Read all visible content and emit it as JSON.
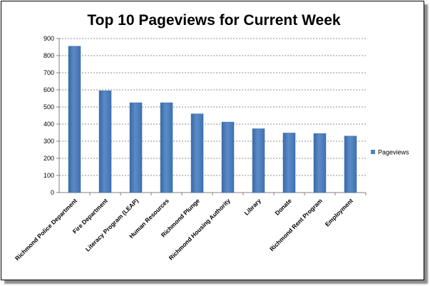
{
  "chart_data": {
    "type": "bar",
    "title": "Top 10 Pageviews for Current Week",
    "xlabel": "",
    "ylabel": "",
    "categories": [
      "Richmond Police Department",
      "Fire Department",
      "Literacy Program (LEAP)",
      "Human Resources",
      "Richmond Plunge",
      "Richmond Housing Authority",
      "Library",
      "Donate",
      "Richmond Rent Program",
      "Employment"
    ],
    "series": [
      {
        "name": "Pageviews",
        "values": [
          855,
          595,
          525,
          525,
          460,
          412,
          373,
          348,
          345,
          330
        ]
      }
    ],
    "ylim": [
      0,
      900
    ],
    "yticks": [
      0,
      100,
      200,
      300,
      400,
      500,
      600,
      700,
      800,
      900
    ],
    "grid": true,
    "legend_position": "right",
    "colors": {
      "bar": "#4f81bd",
      "bar_dark": "#3a6aa6",
      "grid": "#8c8c8c"
    }
  }
}
